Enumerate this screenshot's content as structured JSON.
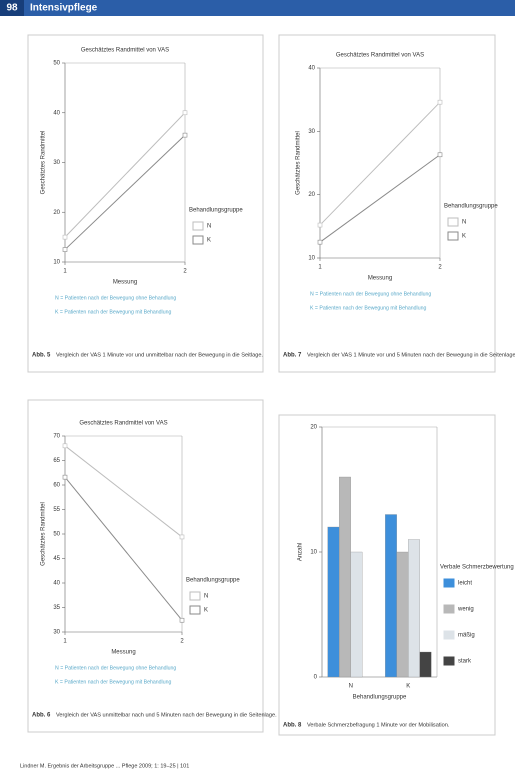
{
  "header": {
    "page": "98",
    "title": "Intensivpflege"
  },
  "footer": "Lindner M. Ergebnis der Arbeitsgruppe ... Pflege 2009; 1: 19–25 | 101",
  "chart_data": [
    {
      "type": "line",
      "title": "Geschätztes Randmittel von VAS",
      "y_label": "Geschätztes Randmittel",
      "x_label": "Messung",
      "x": [
        1,
        2
      ],
      "xlim": [
        1,
        2
      ],
      "xticks": [
        1,
        2
      ],
      "ylim": [
        10,
        50
      ],
      "yticks": [
        10,
        20,
        30,
        40,
        50
      ],
      "legend_title": "Behandlungsgruppe",
      "series": [
        {
          "name": "N",
          "color": "#bdbdbd",
          "values": [
            15,
            40
          ]
        },
        {
          "name": "K",
          "color": "#8a8a8a",
          "values": [
            12.5,
            35.5
          ]
        }
      ],
      "notes": [
        "N = Patienten nach der Bewegung ohne Behandlung",
        "K = Patienten nach der Bewegung mit Behandlung"
      ],
      "caption_label": "Abb. 5",
      "caption": "Vergleich der VAS 1 Minute vor und unmittelbar nach der Bewegung in die Seitlage."
    },
    {
      "type": "line",
      "title": "Geschätztes Randmittel von VAS",
      "y_label": "Geschätztes Randmittel",
      "x_label": "Messung",
      "x": [
        1,
        2
      ],
      "xlim": [
        1,
        2
      ],
      "xticks": [
        1,
        2
      ],
      "ylim": [
        10,
        40
      ],
      "yticks": [
        10,
        20,
        30,
        40
      ],
      "legend_title": "Behandlungsgruppe",
      "series": [
        {
          "name": "N",
          "color": "#bdbdbd",
          "values": [
            15.2,
            34.6
          ]
        },
        {
          "name": "K",
          "color": "#8a8a8a",
          "values": [
            12.5,
            26.3
          ]
        }
      ],
      "notes": [
        "N = Patienten nach der Bewegung ohne Behandlung",
        "K = Patienten nach der Bewegung mit Behandlung"
      ],
      "caption_label": "Abb. 7",
      "caption": "Vergleich der VAS 1 Minute vor und 5 Minuten nach der Bewegung in die Seitenlage."
    },
    {
      "type": "line",
      "title": "Geschätztes Randmittel von VAS",
      "y_label": "Geschätztes Randmittel",
      "x_label": "Messung",
      "x": [
        1,
        2
      ],
      "xlim": [
        1,
        2
      ],
      "xticks": [
        1,
        2
      ],
      "ylim": [
        30,
        70
      ],
      "yticks": [
        30,
        35,
        40,
        45,
        50,
        55,
        60,
        65,
        70
      ],
      "legend_title": "Behandlungsgruppe",
      "series": [
        {
          "name": "N",
          "color": "#bdbdbd",
          "values": [
            68,
            49.4
          ]
        },
        {
          "name": "K",
          "color": "#8a8a8a",
          "values": [
            61.6,
            32.4
          ]
        }
      ],
      "notes": [
        "N = Patienten nach der Bewegung ohne Behandlung",
        "K = Patienten nach der Bewegung mit Behandlung"
      ],
      "caption_label": "Abb. 6",
      "caption": "Vergleich der VAS unmittelbar nach und 5 Minuten nach der Bewegung in die Seitenlage."
    },
    {
      "type": "bar",
      "y_label": "Anzahl",
      "x_label": "Behandlungsgruppe",
      "categories": [
        "N",
        "K"
      ],
      "ylim": [
        0,
        20
      ],
      "yticks": [
        0,
        10,
        20
      ],
      "legend_title": "Verbale Schmerzbewertung",
      "series": [
        {
          "name": "leicht",
          "color": "#3d8fdb",
          "values": [
            12,
            13
          ]
        },
        {
          "name": "wenig",
          "color": "#b8b8b8",
          "values": [
            16,
            10
          ]
        },
        {
          "name": "mäßig",
          "color": "#dde3e8",
          "values": [
            10,
            11
          ]
        },
        {
          "name": "stark",
          "color": "#444444",
          "values": [
            0,
            2
          ]
        }
      ],
      "caption_label": "Abb. 8",
      "caption": "Verbale Schmerzbefragung 1 Minute vor der Mobilisation."
    }
  ]
}
